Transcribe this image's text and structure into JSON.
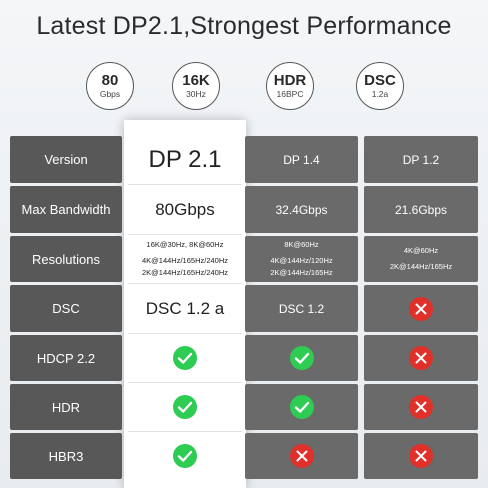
{
  "title": "Latest DP2.1,Strongest Performance",
  "badges": [
    {
      "big": "80",
      "small": "Gbps"
    },
    {
      "big": "16K",
      "small": "30Hz"
    },
    {
      "big": "HDR",
      "small": "16BPC"
    },
    {
      "big": "DSC",
      "small": "1.2a"
    }
  ],
  "rows": {
    "version": {
      "label": "Version",
      "dp21": "DP 2.1",
      "dp14": "DP 1.4",
      "dp12": "DP 1.2"
    },
    "bandwidth": {
      "label": "Max Bandwidth",
      "dp21": "80Gbps",
      "dp14": "32.4Gbps",
      "dp12": "21.6Gbps"
    },
    "resolutions": {
      "label": "Resolutions",
      "dp21": [
        "16K@30Hz, 8K@60Hz",
        "4K@144Hz/165Hz/240Hz",
        "2K@144Hz/165Hz/240Hz"
      ],
      "dp14": [
        "8K@60Hz",
        "4K@144Hz/120Hz",
        "2K@144Hz/165Hz"
      ],
      "dp12": [
        "4K@60Hz",
        "2K@144Hz/165Hz"
      ]
    },
    "dsc": {
      "label": "DSC",
      "dp21": "DSC 1.2 a",
      "dp14": "DSC 1.2"
    },
    "hdcp": {
      "label": "HDCP 2.2"
    },
    "hdr": {
      "label": "HDR"
    },
    "hbr3": {
      "label": "HBR3"
    }
  },
  "colors": {
    "check": "#2ecc52",
    "cross": "#e0302a"
  }
}
